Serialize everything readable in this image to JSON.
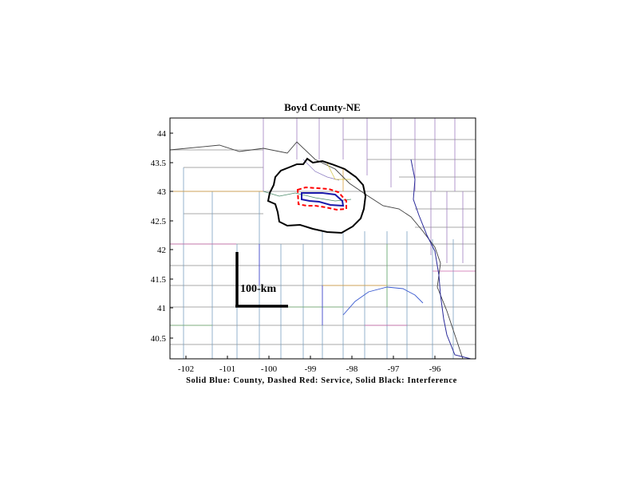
{
  "title": "Boyd County-NE",
  "caption": "Solid Blue: County, Dashed Red: Service, Solid Black: Interference",
  "scale_bar_label": "100-km",
  "axes": {
    "x_ticks": [
      "-102",
      "-101",
      "-100",
      "-99",
      "-98",
      "-97",
      "-96"
    ],
    "y_ticks": [
      "44",
      "43.5",
      "43",
      "42.5",
      "42",
      "41.5",
      "41",
      "40.5"
    ]
  },
  "colors": {
    "county_outline": "#1a1aaa",
    "service_contour": "#ff0000",
    "interference_contour": "#000000",
    "frame": "#000000"
  }
}
